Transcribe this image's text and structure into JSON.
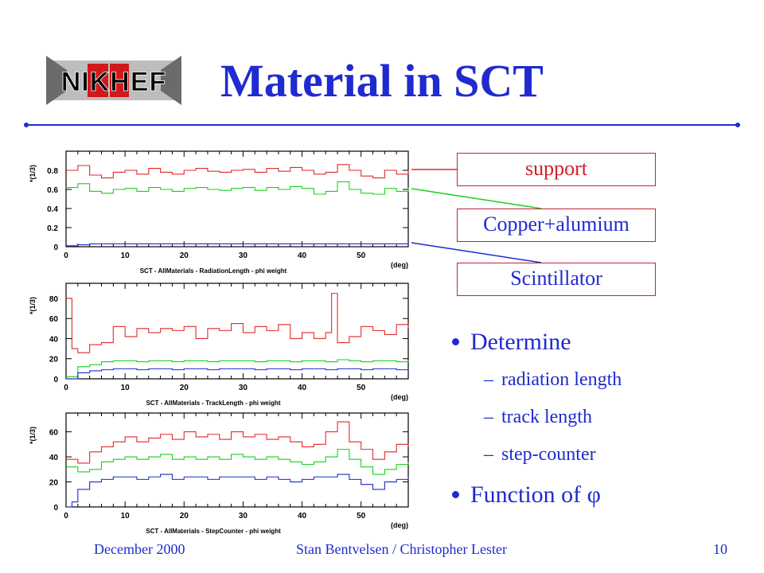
{
  "header": {
    "logo_text": "NIKHEF",
    "title": "Material in SCT"
  },
  "callouts": {
    "support": "support",
    "copper": "Copper+alumium",
    "scintillator": "Scintillator"
  },
  "bullets": [
    {
      "level": 1,
      "text": "Determine"
    },
    {
      "level": 2,
      "text": "radiation length"
    },
    {
      "level": 2,
      "text": "track length"
    },
    {
      "level": 2,
      "text": "step-counter"
    },
    {
      "level": 1,
      "text": "Function of φ"
    }
  ],
  "footer": {
    "date": "December 2000",
    "authors": "Stan Bentvelsen / Christopher Lester",
    "page": "10"
  },
  "colors": {
    "title": "#1f2bcf",
    "support": "#e02a2a",
    "copper": "#18d01e",
    "scintillator": "#1f2bcf",
    "callout_border": "#c8203a"
  },
  "chart_data": [
    {
      "type": "line",
      "title": "SCT - AllMaterials - RadiationLength - phi  weight",
      "ylabel": "*(1/3)",
      "xlabel": "(deg)",
      "xlim": [
        0,
        58
      ],
      "ylim": [
        0,
        1
      ],
      "xticks": [
        0,
        10,
        20,
        30,
        40,
        50
      ],
      "yticks": [
        0,
        0.2,
        0.4,
        0.6,
        0.8
      ],
      "series": [
        {
          "color": "red",
          "x": [
            0,
            2,
            4,
            6,
            8,
            10,
            12,
            14,
            16,
            18,
            20,
            22,
            24,
            26,
            28,
            30,
            32,
            34,
            36,
            38,
            40,
            42,
            44,
            46,
            48,
            50,
            52,
            54,
            56,
            58
          ],
          "values": [
            0.8,
            0.85,
            0.75,
            0.72,
            0.78,
            0.8,
            0.76,
            0.82,
            0.78,
            0.76,
            0.8,
            0.82,
            0.79,
            0.78,
            0.8,
            0.81,
            0.78,
            0.82,
            0.79,
            0.83,
            0.8,
            0.76,
            0.78,
            0.86,
            0.8,
            0.74,
            0.72,
            0.8,
            0.76,
            0.8
          ]
        },
        {
          "color": "green",
          "x": [
            0,
            2,
            4,
            6,
            8,
            10,
            12,
            14,
            16,
            18,
            20,
            22,
            24,
            26,
            28,
            30,
            32,
            34,
            36,
            38,
            40,
            42,
            44,
            46,
            48,
            50,
            52,
            54,
            56,
            58
          ],
          "values": [
            0.62,
            0.66,
            0.58,
            0.56,
            0.6,
            0.61,
            0.58,
            0.62,
            0.6,
            0.58,
            0.61,
            0.62,
            0.6,
            0.59,
            0.61,
            0.62,
            0.59,
            0.62,
            0.6,
            0.63,
            0.61,
            0.55,
            0.58,
            0.68,
            0.6,
            0.56,
            0.55,
            0.61,
            0.58,
            0.62
          ]
        },
        {
          "color": "blue",
          "x": [
            0,
            2,
            4,
            6,
            8,
            10,
            12,
            14,
            16,
            18,
            20,
            22,
            24,
            26,
            28,
            30,
            32,
            34,
            36,
            38,
            40,
            42,
            44,
            46,
            48,
            50,
            52,
            54,
            56,
            58
          ],
          "values": [
            0.01,
            0.02,
            0.03,
            0.03,
            0.03,
            0.03,
            0.03,
            0.03,
            0.03,
            0.03,
            0.03,
            0.03,
            0.03,
            0.03,
            0.03,
            0.03,
            0.03,
            0.03,
            0.03,
            0.03,
            0.03,
            0.03,
            0.03,
            0.03,
            0.03,
            0.03,
            0.03,
            0.03,
            0.03,
            0.03
          ]
        }
      ]
    },
    {
      "type": "line",
      "title": "SCT - AllMaterials - TrackLength - phi  weight",
      "ylabel": "*(1/3)",
      "xlabel": "(deg)",
      "xlim": [
        0,
        58
      ],
      "ylim": [
        0,
        95
      ],
      "xticks": [
        0,
        10,
        20,
        30,
        40,
        50
      ],
      "yticks": [
        0,
        20,
        40,
        60,
        80
      ],
      "series": [
        {
          "color": "red",
          "x": [
            0,
            1,
            2,
            4,
            6,
            8,
            10,
            12,
            14,
            16,
            18,
            20,
            22,
            24,
            26,
            28,
            30,
            32,
            34,
            36,
            38,
            40,
            42,
            44,
            45,
            46,
            48,
            50,
            52,
            54,
            56,
            58
          ],
          "values": [
            80,
            30,
            26,
            34,
            36,
            52,
            42,
            50,
            46,
            50,
            48,
            52,
            40,
            50,
            48,
            55,
            46,
            52,
            48,
            54,
            40,
            46,
            40,
            46,
            85,
            36,
            42,
            52,
            48,
            44,
            54,
            50
          ]
        },
        {
          "color": "green",
          "x": [
            0,
            2,
            4,
            6,
            8,
            10,
            12,
            14,
            16,
            18,
            20,
            22,
            24,
            26,
            28,
            30,
            32,
            34,
            36,
            38,
            40,
            42,
            44,
            46,
            48,
            50,
            52,
            54,
            56,
            58
          ],
          "values": [
            2,
            12,
            14,
            17,
            18,
            18,
            17,
            18,
            18,
            17,
            18,
            18,
            17,
            18,
            18,
            18,
            17,
            18,
            18,
            17,
            18,
            18,
            17,
            19,
            18,
            17,
            18,
            18,
            17,
            18
          ]
        },
        {
          "color": "blue",
          "x": [
            0,
            2,
            4,
            6,
            8,
            10,
            12,
            14,
            16,
            18,
            20,
            22,
            24,
            26,
            28,
            30,
            32,
            34,
            36,
            38,
            40,
            42,
            44,
            46,
            48,
            50,
            52,
            54,
            56,
            58
          ],
          "values": [
            0,
            6,
            8,
            9,
            10,
            10,
            9,
            10,
            10,
            9,
            10,
            10,
            9,
            10,
            10,
            10,
            9,
            10,
            10,
            9,
            10,
            10,
            9,
            10,
            10,
            9,
            10,
            10,
            9,
            10
          ]
        }
      ]
    },
    {
      "type": "line",
      "title": "SCT - AllMaterials - StepCounter - phi  weight",
      "ylabel": "*(1/3)",
      "xlabel": "(deg)",
      "xlim": [
        0,
        58
      ],
      "ylim": [
        0,
        75
      ],
      "xticks": [
        0,
        10,
        20,
        30,
        40,
        50
      ],
      "yticks": [
        0,
        20,
        40,
        60
      ],
      "series": [
        {
          "color": "red",
          "x": [
            0,
            2,
            4,
            6,
            8,
            10,
            12,
            14,
            16,
            18,
            20,
            22,
            24,
            26,
            28,
            30,
            32,
            34,
            36,
            38,
            40,
            42,
            44,
            46,
            48,
            50,
            52,
            54,
            56,
            58
          ],
          "values": [
            38,
            35,
            44,
            48,
            52,
            56,
            52,
            55,
            58,
            54,
            60,
            56,
            58,
            54,
            60,
            56,
            58,
            54,
            56,
            52,
            48,
            50,
            60,
            68,
            52,
            46,
            38,
            44,
            50,
            48
          ]
        },
        {
          "color": "green",
          "x": [
            0,
            2,
            4,
            6,
            8,
            10,
            12,
            14,
            16,
            18,
            20,
            22,
            24,
            26,
            28,
            30,
            32,
            34,
            36,
            38,
            40,
            42,
            44,
            46,
            48,
            50,
            52,
            54,
            56,
            58
          ],
          "values": [
            32,
            28,
            30,
            36,
            38,
            40,
            38,
            40,
            42,
            38,
            40,
            38,
            40,
            38,
            42,
            40,
            38,
            40,
            38,
            36,
            34,
            36,
            40,
            46,
            38,
            32,
            26,
            30,
            34,
            36
          ]
        },
        {
          "color": "blue",
          "x": [
            0,
            1,
            2,
            4,
            6,
            8,
            10,
            12,
            14,
            16,
            18,
            20,
            22,
            24,
            26,
            28,
            30,
            32,
            34,
            36,
            38,
            40,
            42,
            44,
            46,
            48,
            50,
            52,
            54,
            56,
            58
          ],
          "values": [
            0,
            4,
            14,
            20,
            22,
            24,
            24,
            22,
            24,
            26,
            22,
            24,
            24,
            22,
            24,
            24,
            24,
            22,
            24,
            22,
            20,
            22,
            24,
            24,
            26,
            22,
            18,
            14,
            20,
            22,
            24
          ]
        }
      ]
    }
  ]
}
